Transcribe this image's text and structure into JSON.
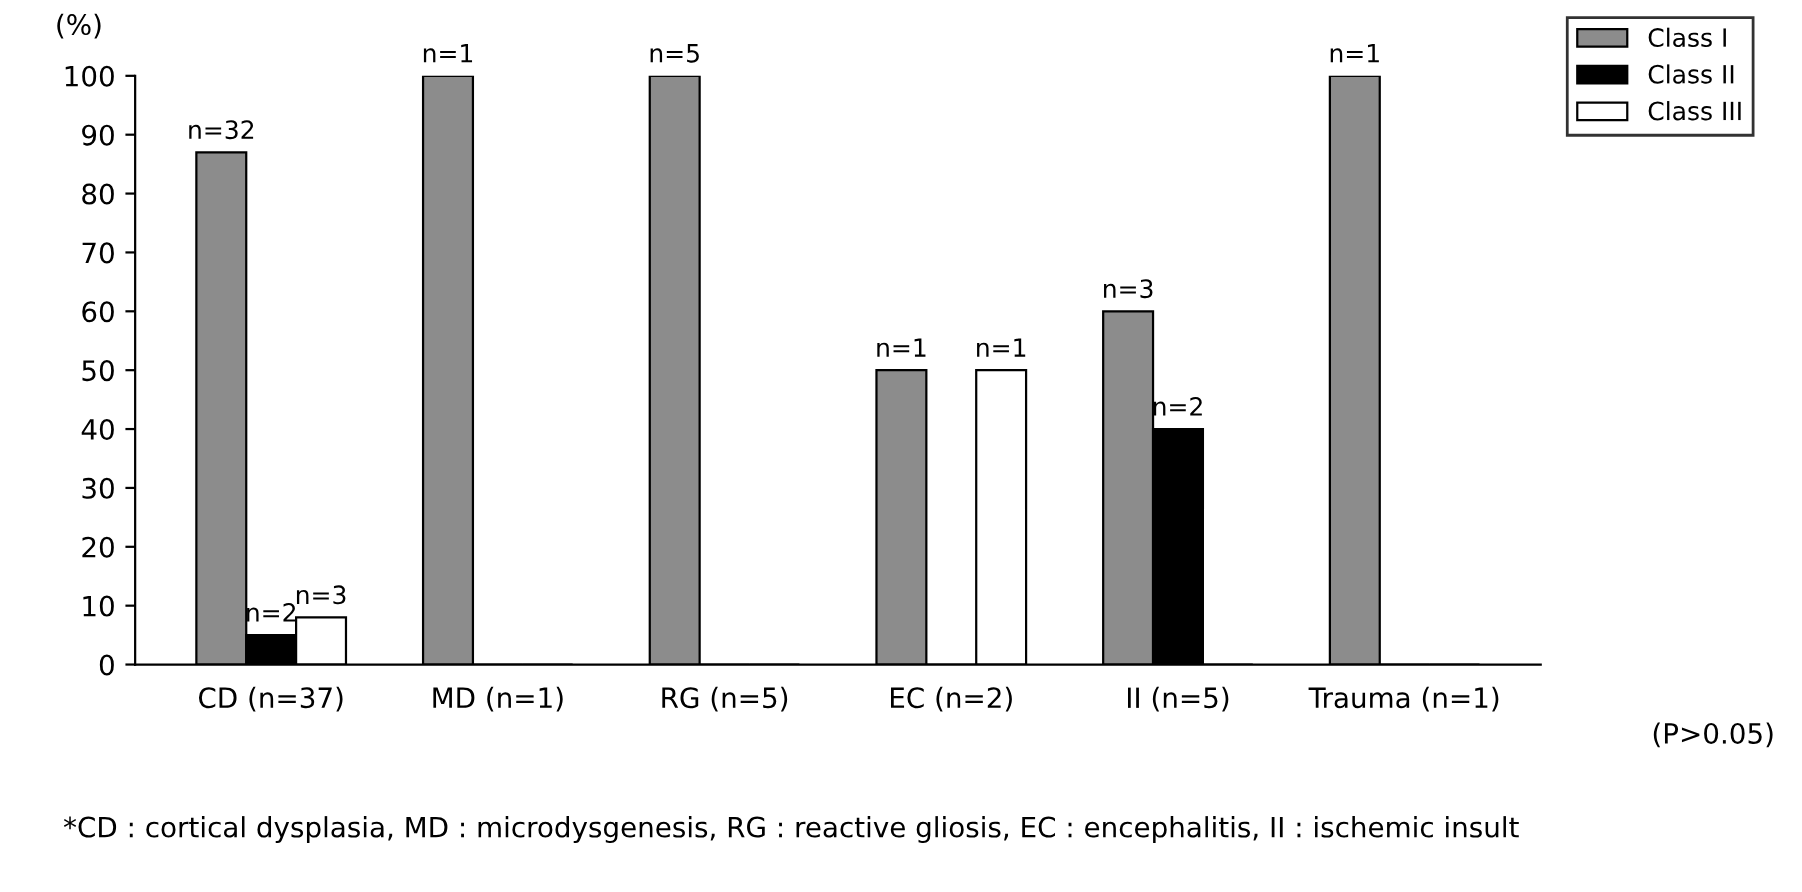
{
  "chart_data": {
    "type": "bar",
    "ylabel": "(%)",
    "categories": [
      "CD (n=37)",
      "MD (n=1)",
      "RG (n=5)",
      "EC (n=2)",
      "II (n=5)",
      "Trauma (n=1)"
    ],
    "series": [
      {
        "name": "Class I",
        "color": "#8c8c8c",
        "values": [
          87,
          100,
          100,
          50,
          60,
          100
        ]
      },
      {
        "name": "Class II",
        "color": "#000000",
        "values": [
          5,
          0,
          0,
          0,
          40,
          0
        ]
      },
      {
        "name": "Class III",
        "color": "#ffffff",
        "values": [
          8,
          0,
          0,
          50,
          0,
          0
        ]
      }
    ],
    "ylim": [
      0,
      100
    ],
    "yticks": [
      0,
      10,
      20,
      30,
      40,
      50,
      60,
      70,
      80,
      90,
      100
    ],
    "grid": false,
    "legend": "top right",
    "annotations": [
      "n=32",
      "n=2",
      "n=3",
      "n=1",
      "n=5",
      "n=1",
      "n=1",
      "n=3",
      "n=2",
      "n=1",
      "(P>0.05)",
      "*CD : cortical dysplasia, MD : microdysgenesis, RG : reactive gliosis, EC : encephalitis, II : ischemic insult"
    ]
  }
}
